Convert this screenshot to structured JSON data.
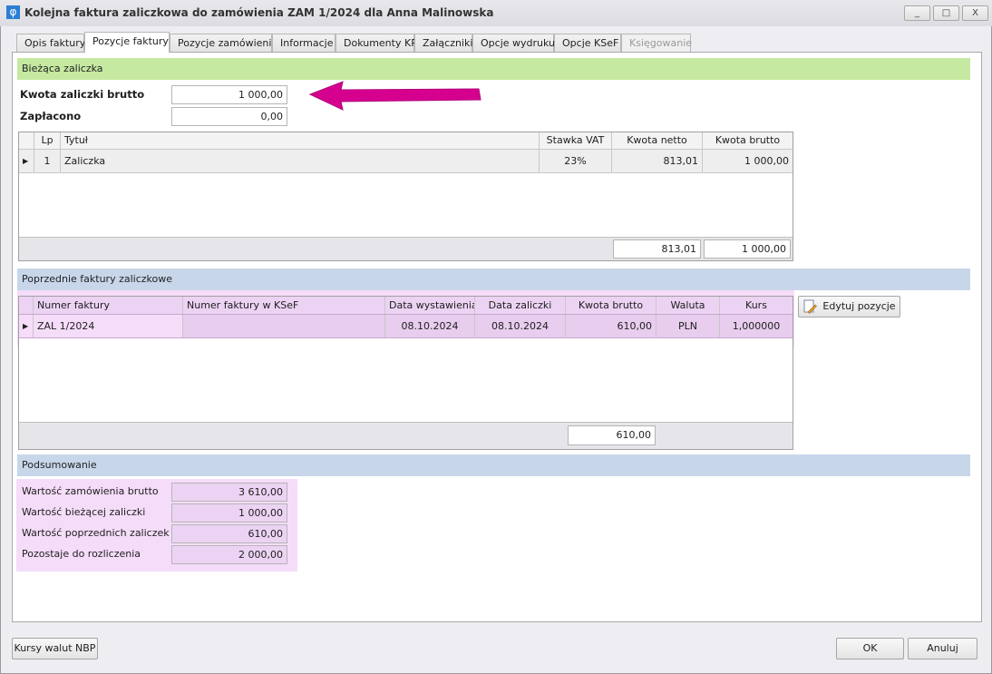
{
  "window": {
    "title": "Kolejna faktura zaliczkowa do zamówienia ZAM 1/2024 dla Anna Malinowska",
    "logo": "φ",
    "minimize": "_",
    "maximize": "□",
    "close": "X"
  },
  "tabs": [
    {
      "label": "Opis faktury"
    },
    {
      "label": "Pozycje faktury",
      "active": true
    },
    {
      "label": "Pozycje zamówienia"
    },
    {
      "label": "Informacje"
    },
    {
      "label": "Dokumenty KP"
    },
    {
      "label": "Załączniki"
    },
    {
      "label": "Opcje wydruku"
    },
    {
      "label": "Opcje KSeF"
    },
    {
      "label": "Księgowanie",
      "disabled": true
    }
  ],
  "current": {
    "header": "Bieżąca zaliczka",
    "amount_label": "Kwota zaliczki brutto",
    "amount_value": "1 000,00",
    "paid_label": "Zapłacono",
    "paid_value": "0,00",
    "columns": [
      "Lp",
      "Tytuł",
      "Stawka VAT",
      "Kwota netto",
      "Kwota brutto"
    ],
    "rows": [
      [
        "1",
        "Zaliczka",
        "23%",
        "813,01",
        "1 000,00"
      ]
    ],
    "totals": {
      "netto": "813,01",
      "brutto": "1 000,00"
    }
  },
  "previous": {
    "header": "Poprzednie faktury zaliczkowe",
    "columns": [
      "Numer faktury",
      "Numer faktury w KSeF",
      "Data wystawienia",
      "Data zaliczki",
      "Kwota brutto",
      "Waluta",
      "Kurs"
    ],
    "rows": [
      [
        "ZAL 1/2024",
        "",
        "08.10.2024",
        "08.10.2024",
        "610,00",
        "PLN",
        "1,000000"
      ]
    ],
    "total": "610,00",
    "edit_button": "Edytuj pozycje"
  },
  "summary": {
    "header": "Podsumowanie",
    "items": [
      {
        "label": "Wartość zamówienia brutto",
        "value": "3 610,00"
      },
      {
        "label": "Wartość bieżącej zaliczki",
        "value": "1 000,00"
      },
      {
        "label": "Wartość poprzednich zaliczek",
        "value": "610,00"
      },
      {
        "label": "Pozostaje do rozliczenia",
        "value": "2 000,00"
      }
    ]
  },
  "footer": {
    "nbp_button": "Kursy walut NBP",
    "ok": "OK",
    "cancel": "Anuluj"
  },
  "colors": {
    "green_header": "#c5e9a0",
    "blue_header": "#c8d6ea",
    "highlight": "#f5dcf9",
    "arrow": "#d6008f"
  }
}
